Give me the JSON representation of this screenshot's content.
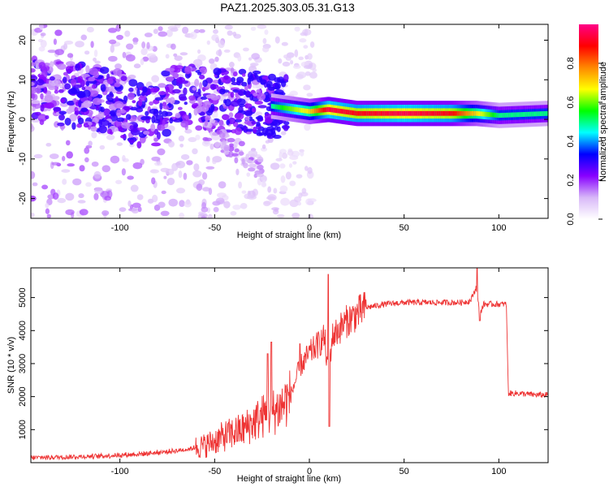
{
  "title": "PAZ1.2025.303.05.31.G13",
  "chart_data": [
    {
      "type": "heatmap",
      "name": "spectrogram",
      "xlabel": "Height of straight line (km)",
      "ylabel": "Frequency (Hz)",
      "xlim": [
        -147,
        126
      ],
      "ylim": [
        -25,
        24
      ],
      "xticks": [
        -100,
        -50,
        0,
        50,
        100
      ],
      "yticks": [
        -20,
        -10,
        0,
        10,
        20
      ],
      "colorbar": {
        "label": "Normalized spectral amplitude",
        "range": [
          0,
          1
        ],
        "ticks": [
          0.0,
          0.2,
          0.4,
          0.6,
          0.8
        ],
        "tick_labels": [
          "0.0",
          "0.2",
          "0.4",
          "0.6",
          "0.8"
        ],
        "colors": [
          "#ffffff",
          "#d8b8f8",
          "#8800ff",
          "#0000ff",
          "#00ffff",
          "#00ff00",
          "#ffff00",
          "#ff8800",
          "#ff0000",
          "#ff0088"
        ]
      },
      "ridge": [
        {
          "x": -140,
          "y": 7,
          "a": 0.25
        },
        {
          "x": -120,
          "y": 6,
          "a": 0.3
        },
        {
          "x": -100,
          "y": 4,
          "a": 0.3
        },
        {
          "x": -85,
          "y": 0,
          "a": 0.35
        },
        {
          "x": -70,
          "y": 6,
          "a": 0.3
        },
        {
          "x": -50,
          "y": 5,
          "a": 0.3
        },
        {
          "x": -30,
          "y": 4,
          "a": 0.35
        },
        {
          "x": -15,
          "y": 3,
          "a": 0.55
        },
        {
          "x": 0,
          "y": 2,
          "a": 0.7
        },
        {
          "x": 10,
          "y": 2.5,
          "a": 0.95
        },
        {
          "x": 25,
          "y": 1.5,
          "a": 0.9
        },
        {
          "x": 50,
          "y": 1.5,
          "a": 0.95
        },
        {
          "x": 75,
          "y": 1.5,
          "a": 0.9
        },
        {
          "x": 88,
          "y": 1.5,
          "a": 0.7
        },
        {
          "x": 100,
          "y": 1,
          "a": 0.5
        },
        {
          "x": 126,
          "y": 1.5,
          "a": 0.5
        }
      ]
    },
    {
      "type": "line",
      "name": "snr",
      "xlabel": "Height of straight line (km)",
      "ylabel": "SNR (10 * v/v)",
      "xlim": [
        -147,
        126
      ],
      "ylim": [
        0,
        5900
      ],
      "xticks": [
        -100,
        -50,
        0,
        50,
        100
      ],
      "yticks": [
        1000,
        2000,
        3000,
        4000,
        5000
      ],
      "color": "#ee3333",
      "x": [
        -147,
        -130,
        -110,
        -90,
        -75,
        -65,
        -55,
        -45,
        -35,
        -25,
        -20,
        -15,
        -10,
        -5,
        0,
        5,
        8,
        10,
        12,
        15,
        20,
        25,
        30,
        40,
        50,
        60,
        70,
        80,
        85,
        88,
        90,
        92,
        95,
        100,
        104,
        105,
        110,
        120,
        126
      ],
      "y": [
        150,
        170,
        200,
        260,
        330,
        400,
        520,
        800,
        1000,
        1400,
        1500,
        1700,
        2000,
        2900,
        3300,
        3600,
        3800,
        2600,
        3800,
        4000,
        4300,
        4500,
        4700,
        4800,
        4850,
        4850,
        4850,
        4850,
        4900,
        5300,
        4500,
        4800,
        4800,
        4800,
        4800,
        2100,
        2100,
        2050,
        2050
      ],
      "spikes": [
        {
          "x": 10,
          "y": 5700
        },
        {
          "x": 10.5,
          "y": 1100
        },
        {
          "x": 88.5,
          "y": 5900
        },
        {
          "x": 90,
          "y": 4300
        },
        {
          "x": -22,
          "y": 3300
        },
        {
          "x": -20,
          "y": 3650
        },
        {
          "x": -5,
          "y": 3600
        }
      ]
    }
  ]
}
